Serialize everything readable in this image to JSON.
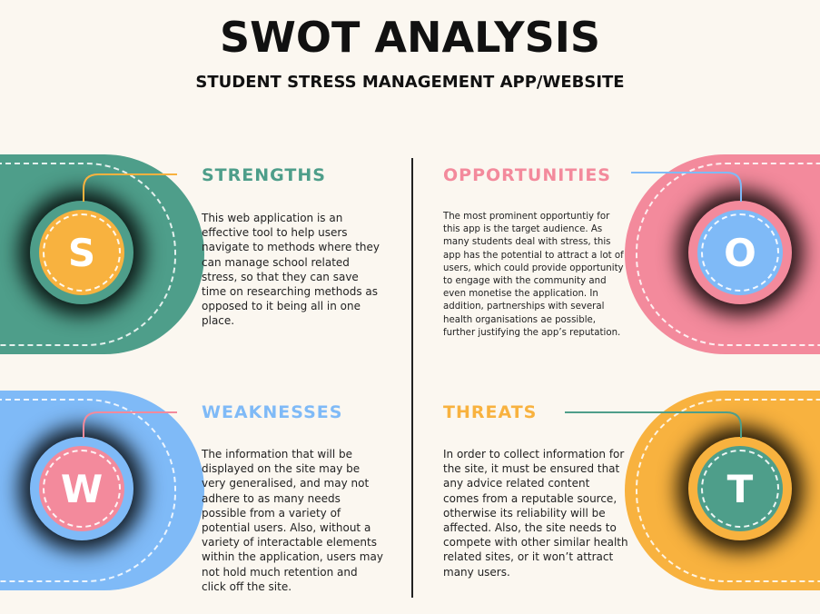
{
  "header": {
    "title": "SWOT ANALYSIS",
    "subtitle": "STUDENT STRESS MANAGEMENT APP/WEBSITE"
  },
  "colors": {
    "strengths": "#4e9e8a",
    "weaknesses": "#7fbaf7",
    "opportunities": "#f38a9c",
    "threats": "#f8b23f",
    "background": "#fbf7f0"
  },
  "strengths": {
    "letter": "S",
    "heading": "STRENGTHS",
    "text": "This web application is an effective tool to help users navigate to methods where they can manage school related stress, so that they can save time on researching methods as opposed to it being all in one place."
  },
  "weaknesses": {
    "letter": "W",
    "heading": "WEAKNESSES",
    "text": "The information that will be displayed on the site may be very generalised, and may not adhere to as many needs possible from a variety of potential users. Also, without a variety of interactable elements within the application, users may not hold much retention and click off the site."
  },
  "opportunities": {
    "letter": "O",
    "heading": "OPPORTUNITIES",
    "text": "The most prominent opportuntiy for this app is the target audience. As many students deal with stress, this app has the potential to attract a lot of users, which could provide opportunity to engage with the community and even monetise the application. In addition, partnerships with several health organisations ae possible, further justifying the app’s reputation."
  },
  "threats": {
    "letter": "T",
    "heading": "THREATS",
    "text": "In order to collect information for the site, it must be ensured that any advice related content comes from a reputable source, otherwise its reliability will be affected. Also, the site needs to compete with other similar health related sites, or it won’t attract many users."
  }
}
